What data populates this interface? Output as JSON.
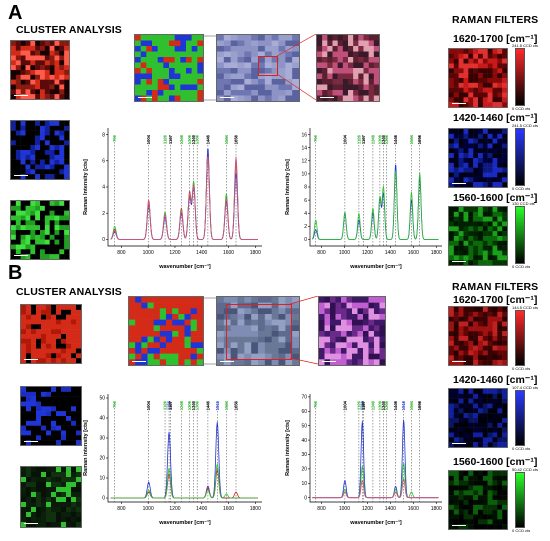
{
  "panels": [
    {
      "letter": "A",
      "cluster_heading": "CLUSTER ANALYSIS",
      "filters_heading": "RAMAN FILTERS",
      "filters": [
        {
          "range": "1620-1700 [cm⁻¹]",
          "cbar_max": "241.5 CCD cts",
          "cbar_min": "0 CCD cts",
          "color": "#e02020"
        },
        {
          "range": "1420-1460 [cm⁻¹]",
          "cbar_max": "241.5 CCD cts",
          "cbar_min": "0 CCD cts",
          "color": "#1a2ad8"
        },
        {
          "range": "1560-1600 [cm⁻¹]",
          "cbar_max": "130 CCD cts",
          "cbar_min": "0 CCD cts",
          "color": "#22c522"
        }
      ]
    },
    {
      "letter": "B",
      "cluster_heading": "CLUSTER ANALYSIS",
      "filters_heading": "RAMAN FILTERS",
      "filters": [
        {
          "range": "1620-1700 [cm⁻¹]",
          "cbar_max": "144.5 CCD cts",
          "cbar_min": "0 CCD cts",
          "color": "#e02020"
        },
        {
          "range": "1420-1460 [cm⁻¹]",
          "cbar_max": "107.4 CCD cts",
          "cbar_min": "0 CCD cts",
          "color": "#1a2ad8"
        },
        {
          "range": "1560-1600 [cm⁻¹]",
          "cbar_max": "50.42 CCD cts",
          "cbar_min": "0 CCD cts",
          "color": "#22c522"
        }
      ]
    }
  ],
  "colors": {
    "red": "#d42a18",
    "blue": "#1f35d6",
    "green": "#2fbf2f",
    "pink": "#e04a8a",
    "axis": "#000000"
  },
  "chart_data": [
    {
      "type": "line",
      "panel": "A",
      "xlabel": "wavenumber [cm⁻¹]",
      "ylabel": "Raman Intensity [cts]",
      "xlim": [
        700,
        1850
      ],
      "ylim": [
        -0.5,
        8.5
      ],
      "xticks": [
        800,
        1000,
        1200,
        1400,
        1600,
        1800
      ],
      "yticks": [
        0,
        2,
        4,
        6,
        8
      ],
      "markers": [
        {
          "x": 750,
          "label": "750",
          "color": "green"
        },
        {
          "x": 1004,
          "label": "1004",
          "color": "black"
        },
        {
          "x": 1126,
          "label": "1126",
          "color": "green"
        },
        {
          "x": 1167,
          "label": "1167",
          "color": "black"
        },
        {
          "x": 1248,
          "label": "1248",
          "color": "green"
        },
        {
          "x": 1309,
          "label": "1309",
          "color": "green"
        },
        {
          "x": 1340,
          "label": "1340",
          "color": "black"
        },
        {
          "x": 1366,
          "label": "1366",
          "color": "green"
        },
        {
          "x": 1446,
          "label": "1446",
          "color": "black"
        },
        {
          "x": 1584,
          "label": "1584",
          "color": "green"
        },
        {
          "x": 1656,
          "label": "1656",
          "color": "black"
        }
      ],
      "series": [
        {
          "color": "red",
          "peaks": [
            [
              750,
              0.8
            ],
            [
              1004,
              3.0
            ],
            [
              1126,
              2.0
            ],
            [
              1248,
              2.4
            ],
            [
              1309,
              3.6
            ],
            [
              1340,
              4.2
            ],
            [
              1446,
              6.6
            ],
            [
              1584,
              3.2
            ],
            [
              1656,
              5.8
            ]
          ]
        },
        {
          "color": "blue",
          "peaks": [
            [
              750,
              0.6
            ],
            [
              1004,
              2.6
            ],
            [
              1126,
              1.7
            ],
            [
              1248,
              2.0
            ],
            [
              1309,
              3.2
            ],
            [
              1340,
              4.0
            ],
            [
              1446,
              7.0
            ],
            [
              1584,
              2.9
            ],
            [
              1656,
              5.0
            ]
          ]
        },
        {
          "color": "green",
          "peaks": [
            [
              750,
              1.0
            ],
            [
              1004,
              2.8
            ],
            [
              1126,
              2.1
            ],
            [
              1248,
              2.3
            ],
            [
              1309,
              3.4
            ],
            [
              1340,
              4.4
            ],
            [
              1446,
              6.2
            ],
            [
              1584,
              3.5
            ],
            [
              1656,
              6.1
            ]
          ]
        },
        {
          "color": "pink",
          "peaks": [
            [
              750,
              0.7
            ],
            [
              1004,
              2.9
            ],
            [
              1126,
              1.9
            ],
            [
              1248,
              2.2
            ],
            [
              1309,
              3.5
            ],
            [
              1340,
              4.1
            ],
            [
              1446,
              6.4
            ],
            [
              1584,
              3.1
            ],
            [
              1656,
              6.3
            ]
          ]
        }
      ]
    },
    {
      "type": "line",
      "panel": "A",
      "xlabel": "wavenumber [cm⁻¹]",
      "ylabel": "Raman Intensity [cts]",
      "xlim": [
        700,
        1850
      ],
      "ylim": [
        -1,
        17
      ],
      "xticks": [
        800,
        1000,
        1200,
        1400,
        1600,
        1800
      ],
      "yticks": [
        0,
        2,
        4,
        6,
        8,
        10,
        12,
        14,
        16
      ],
      "markers": [
        {
          "x": 750,
          "label": "750",
          "color": "green"
        },
        {
          "x": 1004,
          "label": "1004",
          "color": "black"
        },
        {
          "x": 1126,
          "label": "1126",
          "color": "green"
        },
        {
          "x": 1167,
          "label": "1167",
          "color": "black"
        },
        {
          "x": 1248,
          "label": "1248",
          "color": "green"
        },
        {
          "x": 1309,
          "label": "1309",
          "color": "green"
        },
        {
          "x": 1340,
          "label": "1340",
          "color": "black"
        },
        {
          "x": 1366,
          "label": "1366",
          "color": "green"
        },
        {
          "x": 1446,
          "label": "1446",
          "color": "black"
        },
        {
          "x": 1584,
          "label": "1584",
          "color": "green"
        },
        {
          "x": 1656,
          "label": "1656",
          "color": "black"
        }
      ],
      "series": [
        {
          "color": "blue",
          "peaks": [
            [
              750,
              1.5
            ],
            [
              1004,
              4.0
            ],
            [
              1126,
              3.0
            ],
            [
              1248,
              4.0
            ],
            [
              1309,
              6.2
            ],
            [
              1340,
              7.0
            ],
            [
              1446,
              11.5
            ],
            [
              1584,
              6.0
            ],
            [
              1656,
              9.5
            ]
          ]
        },
        {
          "color": "green",
          "peaks": [
            [
              750,
              3.0
            ],
            [
              1004,
              4.2
            ],
            [
              1126,
              4.0
            ],
            [
              1248,
              4.8
            ],
            [
              1309,
              6.5
            ],
            [
              1340,
              8.0
            ],
            [
              1446,
              10.5
            ],
            [
              1584,
              7.2
            ],
            [
              1656,
              10.2
            ]
          ]
        }
      ]
    },
    {
      "type": "line",
      "panel": "B",
      "xlabel": "wavenumber [cm⁻¹]",
      "ylabel": "Raman intensity [cts]",
      "xlim": [
        700,
        1850
      ],
      "ylim": [
        -2,
        52
      ],
      "xticks": [
        800,
        1000,
        1200,
        1400,
        1600,
        1800
      ],
      "yticks": [
        0,
        10,
        20,
        30,
        40,
        50
      ],
      "markers": [
        {
          "x": 750,
          "label": "750",
          "color": "green"
        },
        {
          "x": 1004,
          "label": "1004",
          "color": "black"
        },
        {
          "x": 1126,
          "label": "1126",
          "color": "green"
        },
        {
          "x": 1156,
          "label": "1156",
          "color": "blue"
        },
        {
          "x": 1167,
          "label": "1167",
          "color": "black"
        },
        {
          "x": 1248,
          "label": "1248",
          "color": "green"
        },
        {
          "x": 1309,
          "label": "1309",
          "color": "green"
        },
        {
          "x": 1340,
          "label": "1340",
          "color": "black"
        },
        {
          "x": 1366,
          "label": "1366",
          "color": "green"
        },
        {
          "x": 1446,
          "label": "1446",
          "color": "black"
        },
        {
          "x": 1516,
          "label": "1516",
          "color": "blue"
        },
        {
          "x": 1584,
          "label": "1584",
          "color": "green"
        },
        {
          "x": 1656,
          "label": "1656",
          "color": "black"
        }
      ],
      "series": [
        {
          "color": "blue",
          "peaks": [
            [
              1004,
              8
            ],
            [
              1156,
              33
            ],
            [
              1446,
              6
            ],
            [
              1516,
              38
            ]
          ]
        },
        {
          "color": "red",
          "peaks": [
            [
              1004,
              3
            ],
            [
              1156,
              12
            ],
            [
              1446,
              5
            ],
            [
              1516,
              14
            ],
            [
              1656,
              3
            ]
          ]
        },
        {
          "color": "green",
          "peaks": [
            [
              1004,
              4
            ],
            [
              1156,
              15
            ],
            [
              1446,
              4
            ],
            [
              1516,
              17
            ],
            [
              1584,
              2
            ]
          ]
        }
      ]
    },
    {
      "type": "line",
      "panel": "B",
      "xlabel": "wavenumber [cm⁻¹]",
      "ylabel": "Raman intensity [cts]",
      "xlim": [
        700,
        1850
      ],
      "ylim": [
        -3,
        72
      ],
      "xticks": [
        800,
        1000,
        1200,
        1400,
        1600,
        1800
      ],
      "yticks": [
        0,
        10,
        20,
        30,
        40,
        50,
        60,
        70
      ],
      "markers": [
        {
          "x": 750,
          "label": "750",
          "color": "green"
        },
        {
          "x": 1004,
          "label": "1004",
          "color": "black"
        },
        {
          "x": 1126,
          "label": "1126",
          "color": "green"
        },
        {
          "x": 1156,
          "label": "1156",
          "color": "blue"
        },
        {
          "x": 1167,
          "label": "1167",
          "color": "black"
        },
        {
          "x": 1248,
          "label": "1248",
          "color": "green"
        },
        {
          "x": 1309,
          "label": "1309",
          "color": "green"
        },
        {
          "x": 1340,
          "label": "1340",
          "color": "black"
        },
        {
          "x": 1366,
          "label": "1366",
          "color": "green"
        },
        {
          "x": 1446,
          "label": "1446",
          "color": "black"
        },
        {
          "x": 1516,
          "label": "1516",
          "color": "blue"
        },
        {
          "x": 1584,
          "label": "1584",
          "color": "green"
        },
        {
          "x": 1656,
          "label": "1656",
          "color": "black"
        }
      ],
      "series": [
        {
          "color": "blue",
          "peaks": [
            [
              1004,
              12
            ],
            [
              1156,
              53
            ],
            [
              1446,
              8
            ],
            [
              1516,
              54
            ]
          ]
        },
        {
          "color": "green",
          "peaks": [
            [
              1004,
              6
            ],
            [
              1156,
              22
            ],
            [
              1446,
              6
            ],
            [
              1516,
              24
            ],
            [
              1584,
              4
            ]
          ]
        },
        {
          "color": "pink",
          "peaks": [
            [
              1004,
              4
            ],
            [
              1156,
              12
            ],
            [
              1446,
              4
            ],
            [
              1516,
              13
            ]
          ]
        }
      ]
    }
  ]
}
